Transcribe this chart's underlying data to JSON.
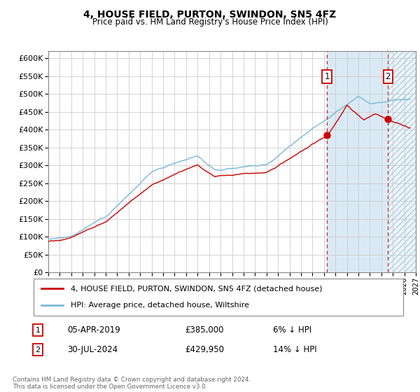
{
  "title": "4, HOUSE FIELD, PURTON, SWINDON, SN5 4FZ",
  "subtitle": "Price paid vs. HM Land Registry's House Price Index (HPI)",
  "ylim": [
    0,
    620000
  ],
  "yticks": [
    0,
    50000,
    100000,
    150000,
    200000,
    250000,
    300000,
    350000,
    400000,
    450000,
    500000,
    550000,
    600000
  ],
  "legend_label_red": "4, HOUSE FIELD, PURTON, SWINDON, SN5 4FZ (detached house)",
  "legend_label_blue": "HPI: Average price, detached house, Wiltshire",
  "annotation1_label": "1",
  "annotation1_date": "05-APR-2019",
  "annotation1_price": "£385,000",
  "annotation1_pct": "6% ↓ HPI",
  "annotation2_label": "2",
  "annotation2_date": "30-JUL-2024",
  "annotation2_price": "£429,950",
  "annotation2_pct": "14% ↓ HPI",
  "sale1_year": 2019.27,
  "sale1_value": 385000,
  "sale2_year": 2024.58,
  "sale2_value": 429950,
  "hpi_color": "#7bb8d8",
  "red_color": "#cc0000",
  "shade_color": "#daeaf5",
  "hatch_color": "#b0cfe0",
  "footer": "Contains HM Land Registry data © Crown copyright and database right 2024.\nThis data is licensed under the Open Government Licence v3.0.",
  "xmin": 1995,
  "xmax": 2027
}
